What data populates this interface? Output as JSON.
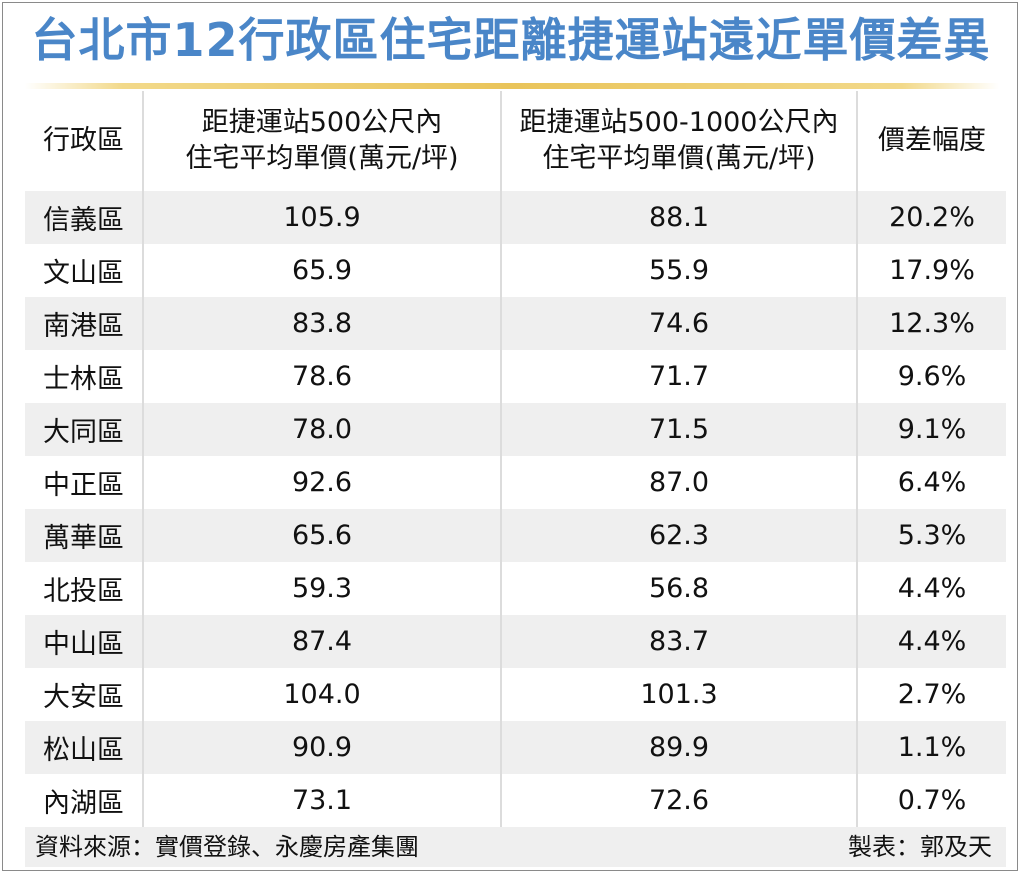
{
  "title": "台北市12行政區住宅距離捷運站遠近單價差異",
  "footer": {
    "source": "資料來源：實價登錄、永慶房產集團",
    "credit": "製表：郭及天"
  },
  "chart_data": {
    "type": "table",
    "title": "台北市12行政區住宅距離捷運站遠近單價差異",
    "columns": [
      {
        "line1": "行政區",
        "line2": ""
      },
      {
        "line1": "距捷運站500公尺內",
        "line2": "住宅平均單價(萬元/坪)"
      },
      {
        "line1": "距捷運站500-1000公尺內",
        "line2": "住宅平均單價(萬元/坪)"
      },
      {
        "line1": "價差幅度",
        "line2": ""
      }
    ],
    "rows": [
      [
        "信義區",
        "105.9",
        "88.1",
        "20.2%"
      ],
      [
        "文山區",
        "65.9",
        "55.9",
        "17.9%"
      ],
      [
        "南港區",
        "83.8",
        "74.6",
        "12.3%"
      ],
      [
        "士林區",
        "78.6",
        "71.7",
        "9.6%"
      ],
      [
        "大同區",
        "78.0",
        "71.5",
        "9.1%"
      ],
      [
        "中正區",
        "92.6",
        "87.0",
        "6.4%"
      ],
      [
        "萬華區",
        "65.6",
        "62.3",
        "5.3%"
      ],
      [
        "北投區",
        "59.3",
        "56.8",
        "4.4%"
      ],
      [
        "中山區",
        "87.4",
        "83.7",
        "4.4%"
      ],
      [
        "大安區",
        "104.0",
        "101.3",
        "2.7%"
      ],
      [
        "松山區",
        "90.9",
        "89.9",
        "1.1%"
      ],
      [
        "內湖區",
        "73.1",
        "72.6",
        "0.7%"
      ]
    ]
  }
}
